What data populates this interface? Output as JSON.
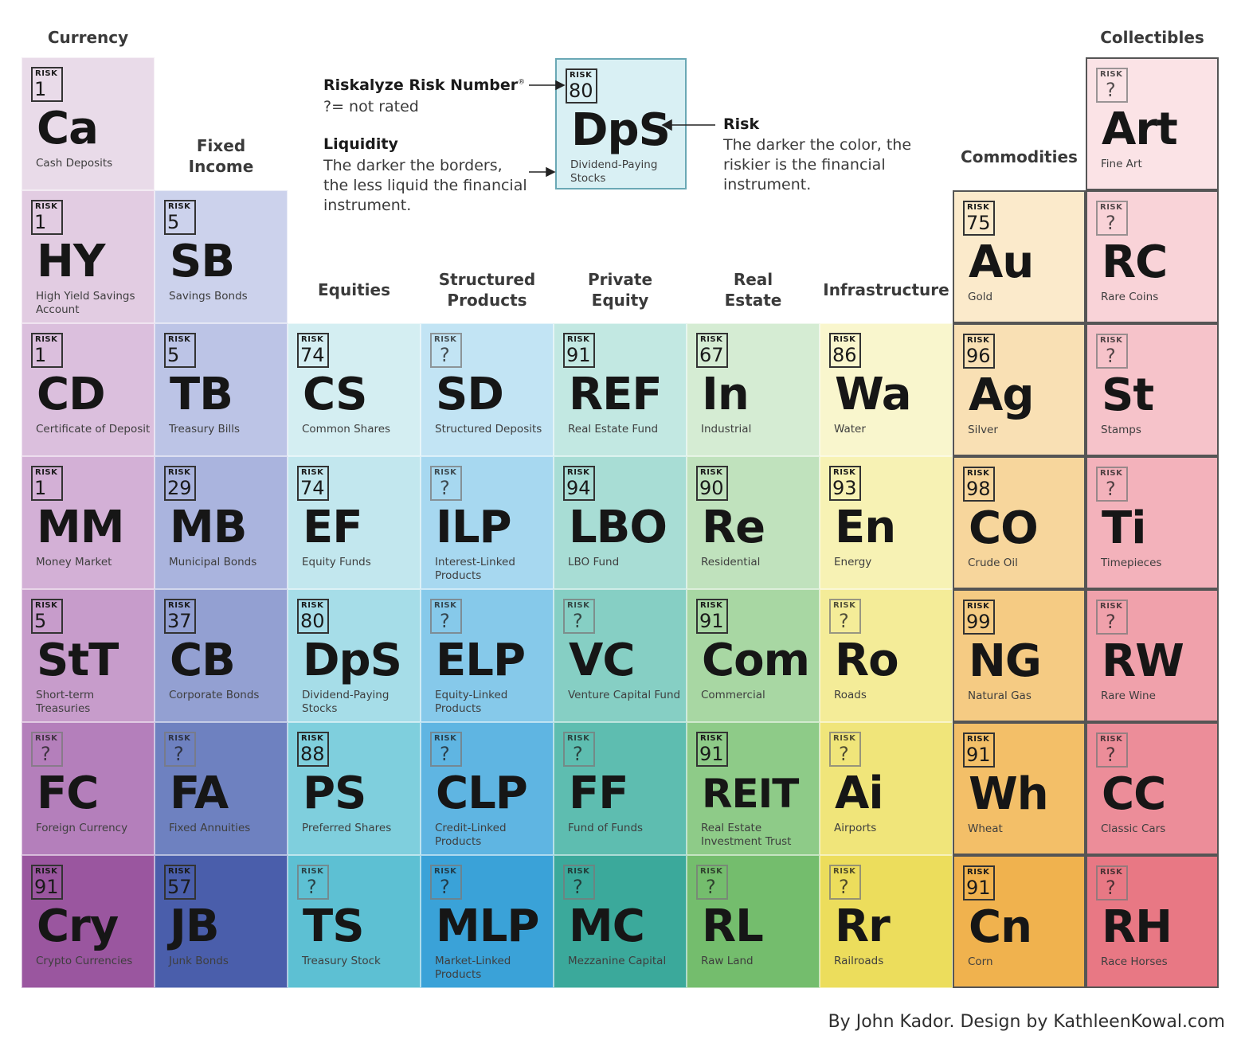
{
  "headers": [
    {
      "text": "Currency",
      "col": 0,
      "top": 34
    },
    {
      "text": "Fixed\nIncome",
      "col": 1,
      "top": 170
    },
    {
      "text": "Equities",
      "col": 2,
      "top": 351
    },
    {
      "text": "Structured\nProducts",
      "col": 3,
      "top": 338
    },
    {
      "text": "Private\nEquity",
      "col": 4,
      "top": 338
    },
    {
      "text": "Real\nEstate",
      "col": 5,
      "top": 338
    },
    {
      "text": "Infrastructure",
      "col": 6,
      "top": 351
    },
    {
      "text": "Commodities",
      "col": 7,
      "top": 184
    },
    {
      "text": "Collectibles",
      "col": 8,
      "top": 34
    }
  ],
  "risk_label": "RISK",
  "elements": [
    {
      "col": 0,
      "row": 0,
      "risk": "1",
      "sym": "Ca",
      "name": "Cash Deposits",
      "color": "#e9dbe9"
    },
    {
      "col": 0,
      "row": 1,
      "risk": "1",
      "sym": "HY",
      "name": "High Yield Savings Account",
      "color": "#e2cce2"
    },
    {
      "col": 0,
      "row": 2,
      "risk": "1",
      "sym": "CD",
      "name": "Certificate of Deposit",
      "color": "#dbbfdd"
    },
    {
      "col": 0,
      "row": 3,
      "risk": "1",
      "sym": "MM",
      "name": "Money Market",
      "color": "#d3b0d6"
    },
    {
      "col": 0,
      "row": 4,
      "risk": "5",
      "sym": "StT",
      "name": "Short-term Treasuries",
      "color": "#c79ccb"
    },
    {
      "col": 0,
      "row": 5,
      "risk": "?",
      "sym": "FC",
      "name": "Foreign Currency",
      "color": "#b47fbb"
    },
    {
      "col": 0,
      "row": 6,
      "risk": "91",
      "sym": "Cry",
      "name": "Crypto Currencies",
      "color": "#9a569f"
    },
    {
      "col": 1,
      "row": 1,
      "risk": "5",
      "sym": "SB",
      "name": "Savings Bonds",
      "color": "#ccd2ec"
    },
    {
      "col": 1,
      "row": 2,
      "risk": "5",
      "sym": "TB",
      "name": "Treasury Bills",
      "color": "#bcc4e6"
    },
    {
      "col": 1,
      "row": 3,
      "risk": "29",
      "sym": "MB",
      "name": "Municipal Bonds",
      "color": "#aab4de"
    },
    {
      "col": 1,
      "row": 4,
      "risk": "37",
      "sym": "CB",
      "name": "Corporate Bonds",
      "color": "#93a0d2"
    },
    {
      "col": 1,
      "row": 5,
      "risk": "?",
      "sym": "FA",
      "name": "Fixed Annuities",
      "color": "#6e81c0"
    },
    {
      "col": 1,
      "row": 6,
      "risk": "57",
      "sym": "JB",
      "name": "Junk Bonds",
      "color": "#4a5eab"
    },
    {
      "col": 2,
      "row": 2,
      "risk": "74",
      "sym": "CS",
      "name": "Common Shares",
      "color": "#d4eef2"
    },
    {
      "col": 2,
      "row": 3,
      "risk": "74",
      "sym": "EF",
      "name": "Equity Funds",
      "color": "#c2e7ee"
    },
    {
      "col": 2,
      "row": 4,
      "risk": "80",
      "sym": "DpS",
      "name": "Dividend-Paying Stocks",
      "color": "#a6dde8"
    },
    {
      "col": 2,
      "row": 5,
      "risk": "88",
      "sym": "PS",
      "name": "Preferred Shares",
      "color": "#7fcfdd"
    },
    {
      "col": 2,
      "row": 6,
      "risk": "?",
      "sym": "TS",
      "name": "Treasury Stock",
      "color": "#5dc0d3"
    },
    {
      "col": 3,
      "row": 2,
      "risk": "?",
      "sym": "SD",
      "name": "Structured Deposits",
      "color": "#c2e4f4"
    },
    {
      "col": 3,
      "row": 3,
      "risk": "?",
      "sym": "ILP",
      "name": "Interest-Linked Products",
      "color": "#a7d8f0"
    },
    {
      "col": 3,
      "row": 4,
      "risk": "?",
      "sym": "ELP",
      "name": "Equity-Linked Products",
      "color": "#86c9ea"
    },
    {
      "col": 3,
      "row": 5,
      "risk": "?",
      "sym": "CLP",
      "name": "Credit-Linked Products",
      "color": "#5fb5e2"
    },
    {
      "col": 3,
      "row": 6,
      "risk": "?",
      "sym": "MLP",
      "name": "Market-Linked Products",
      "color": "#3aa2d8"
    },
    {
      "col": 4,
      "row": 2,
      "risk": "91",
      "sym": "REF",
      "name": "Real Estate Fund",
      "color": "#c2e8e2"
    },
    {
      "col": 4,
      "row": 3,
      "risk": "94",
      "sym": "LBO",
      "name": "LBO Fund",
      "color": "#a8ddd5"
    },
    {
      "col": 4,
      "row": 4,
      "risk": "?",
      "sym": "VC",
      "name": "Venture Capital Fund",
      "color": "#86cfc4"
    },
    {
      "col": 4,
      "row": 5,
      "risk": "?",
      "sym": "FF",
      "name": "Fund of Funds",
      "color": "#5ebdb0"
    },
    {
      "col": 4,
      "row": 6,
      "risk": "?",
      "sym": "MC",
      "name": "Mezzanine Capital",
      "color": "#3ba99b"
    },
    {
      "col": 5,
      "row": 2,
      "risk": "67",
      "sym": "In",
      "name": "Industrial",
      "color": "#d5ecd3"
    },
    {
      "col": 5,
      "row": 3,
      "risk": "90",
      "sym": "Re",
      "name": "Residential",
      "color": "#c0e2bd"
    },
    {
      "col": 5,
      "row": 4,
      "risk": "91",
      "sym": "Com",
      "name": "Commercial",
      "color": "#a8d7a3"
    },
    {
      "col": 5,
      "row": 5,
      "risk": "91",
      "sym": "REIT",
      "name": "Real Estate Investment Trust",
      "color": "#8ecb88"
    },
    {
      "col": 5,
      "row": 6,
      "risk": "?",
      "sym": "RL",
      "name": "Raw Land",
      "color": "#74bd6d"
    },
    {
      "col": 6,
      "row": 2,
      "risk": "86",
      "sym": "Wa",
      "name": "Water",
      "color": "#f9f6cd"
    },
    {
      "col": 6,
      "row": 3,
      "risk": "93",
      "sym": "En",
      "name": "Energy",
      "color": "#f7f2b4"
    },
    {
      "col": 6,
      "row": 4,
      "risk": "?",
      "sym": "Ro",
      "name": "Roads",
      "color": "#f4ec98"
    },
    {
      "col": 6,
      "row": 5,
      "risk": "?",
      "sym": "Ai",
      "name": "Airports",
      "color": "#f0e57a"
    },
    {
      "col": 6,
      "row": 6,
      "risk": "?",
      "sym": "Rr",
      "name": "Railroads",
      "color": "#ecdd5c"
    },
    {
      "col": 7,
      "row": 1,
      "risk": "75",
      "sym": "Au",
      "name": "Gold",
      "color": "#fbeacb"
    },
    {
      "col": 7,
      "row": 2,
      "risk": "96",
      "sym": "Ag",
      "name": "Silver",
      "color": "#f9e0b4"
    },
    {
      "col": 7,
      "row": 3,
      "risk": "98",
      "sym": "CO",
      "name": "Crude Oil",
      "color": "#f7d69c"
    },
    {
      "col": 7,
      "row": 4,
      "risk": "99",
      "sym": "NG",
      "name": "Natural Gas",
      "color": "#f5cb83"
    },
    {
      "col": 7,
      "row": 5,
      "risk": "91",
      "sym": "Wh",
      "name": "Wheat",
      "color": "#f3bf68"
    },
    {
      "col": 7,
      "row": 6,
      "risk": "91",
      "sym": "Cn",
      "name": "Corn",
      "color": "#f0b24e"
    },
    {
      "col": 8,
      "row": 0,
      "risk": "?",
      "sym": "Art",
      "name": "Fine Art",
      "color": "#fbe3e6"
    },
    {
      "col": 8,
      "row": 1,
      "risk": "?",
      "sym": "RC",
      "name": "Rare Coins",
      "color": "#f9d3d8"
    },
    {
      "col": 8,
      "row": 2,
      "risk": "?",
      "sym": "St",
      "name": "Stamps",
      "color": "#f6c3ca"
    },
    {
      "col": 8,
      "row": 3,
      "risk": "?",
      "sym": "Ti",
      "name": "Timepieces",
      "color": "#f3b2bb"
    },
    {
      "col": 8,
      "row": 4,
      "risk": "?",
      "sym": "RW",
      "name": "Rare Wine",
      "color": "#f0a1ab"
    },
    {
      "col": 8,
      "row": 5,
      "risk": "?",
      "sym": "CC",
      "name": "Classic Cars",
      "color": "#ec8d99"
    },
    {
      "col": 8,
      "row": 6,
      "risk": "?",
      "sym": "RH",
      "name": "Race Horses",
      "color": "#e87884"
    }
  ],
  "legend": {
    "risk_number_title": "Riskalyze Risk Number",
    "risk_number_mark": "®",
    "not_rated": "?= not rated",
    "liquidity_title": "Liquidity",
    "liquidity_text": "The darker the borders, the less liquid the financial instrument.",
    "risk_title": "Risk",
    "risk_text": "The darker the color, the riskier is the financial instrument.",
    "sample": {
      "risk": "80",
      "sym": "DpS",
      "name": "Dividend-Paying Stocks",
      "color": "#d9f0f4"
    }
  },
  "credit": "By John Kador. Design by KathleenKowal.com"
}
